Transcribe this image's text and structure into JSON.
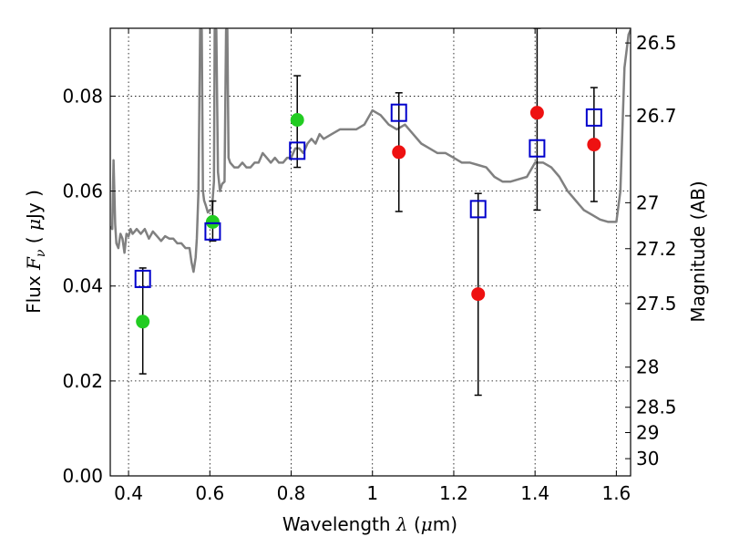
{
  "chart_data": {
    "type": "scatter",
    "xlabel_prefix": "Wavelength ",
    "xlabel_symbol": "λ",
    "xlabel_suffix": " (",
    "xlabel_unit_mu": "μ",
    "xlabel_unit_tail": "m)",
    "ylabel_prefix": "Flux ",
    "ylabel_symbol": "F",
    "ylabel_subscript": "ν",
    "ylabel_suffix_open": " ( ",
    "ylabel_unit_mu": "μ",
    "ylabel_unit_tail": "Jy )",
    "y2label": "Magnitude (AB)",
    "xlim": [
      0.355,
      1.635
    ],
    "ylim": [
      0.0,
      0.0943
    ],
    "grid": true,
    "x_ticks": [
      {
        "v": 0.4,
        "label": "0.4"
      },
      {
        "v": 0.6,
        "label": "0.6"
      },
      {
        "v": 0.8,
        "label": "0.8"
      },
      {
        "v": 1.0,
        "label": "1"
      },
      {
        "v": 1.2,
        "label": "1.2"
      },
      {
        "v": 1.4,
        "label": "1.4"
      },
      {
        "v": 1.6,
        "label": "1.6"
      }
    ],
    "y_ticks": [
      {
        "v": 0.0,
        "label": "0.00"
      },
      {
        "v": 0.02,
        "label": "0.02"
      },
      {
        "v": 0.04,
        "label": "0.04"
      },
      {
        "v": 0.06,
        "label": "0.06"
      },
      {
        "v": 0.08,
        "label": "0.08"
      }
    ],
    "mag_ticks": [
      {
        "mag": 26.5,
        "label": "26.5"
      },
      {
        "mag": 26.7,
        "label": "26.7"
      },
      {
        "mag": 27.0,
        "label": "27"
      },
      {
        "mag": 27.2,
        "label": "27.2"
      },
      {
        "mag": 27.5,
        "label": "27.5"
      },
      {
        "mag": 28.0,
        "label": "28"
      },
      {
        "mag": 28.5,
        "label": "28.5"
      },
      {
        "mag": 29.0,
        "label": "29"
      },
      {
        "mag": 30.0,
        "label": "30"
      }
    ],
    "series": [
      {
        "marker": "line",
        "color": "#808080",
        "x": [
          0.355,
          0.36,
          0.363,
          0.367,
          0.37,
          0.375,
          0.38,
          0.385,
          0.39,
          0.395,
          0.4,
          0.405,
          0.41,
          0.415,
          0.42,
          0.43,
          0.44,
          0.45,
          0.46,
          0.47,
          0.48,
          0.49,
          0.5,
          0.51,
          0.52,
          0.53,
          0.54,
          0.55,
          0.555,
          0.56,
          0.565,
          0.568,
          0.572,
          0.576,
          0.58,
          0.583,
          0.586,
          0.59,
          0.595,
          0.6,
          0.605,
          0.61,
          0.612,
          0.616,
          0.62,
          0.625,
          0.63,
          0.636,
          0.64,
          0.643,
          0.646,
          0.65,
          0.66,
          0.67,
          0.68,
          0.69,
          0.7,
          0.71,
          0.72,
          0.73,
          0.74,
          0.75,
          0.76,
          0.77,
          0.78,
          0.79,
          0.8,
          0.81,
          0.82,
          0.83,
          0.84,
          0.85,
          0.86,
          0.87,
          0.88,
          0.9,
          0.92,
          0.94,
          0.96,
          0.98,
          1.0,
          1.02,
          1.04,
          1.06,
          1.08,
          1.1,
          1.12,
          1.14,
          1.16,
          1.18,
          1.2,
          1.22,
          1.24,
          1.26,
          1.28,
          1.3,
          1.32,
          1.34,
          1.36,
          1.38,
          1.4,
          1.42,
          1.44,
          1.46,
          1.48,
          1.5,
          1.52,
          1.54,
          1.56,
          1.58,
          1.6,
          1.61,
          1.62,
          1.63,
          1.635
        ],
        "y": [
          0.0525,
          0.052,
          0.0665,
          0.053,
          0.049,
          0.048,
          0.051,
          0.05,
          0.047,
          0.051,
          0.0505,
          0.052,
          0.051,
          0.0515,
          0.052,
          0.051,
          0.052,
          0.05,
          0.0515,
          0.0505,
          0.0495,
          0.0505,
          0.05,
          0.05,
          0.049,
          0.049,
          0.048,
          0.048,
          0.045,
          0.043,
          0.046,
          0.05,
          0.06,
          0.094,
          0.094,
          0.06,
          0.058,
          0.057,
          0.0555,
          0.056,
          0.056,
          0.062,
          0.094,
          0.094,
          0.064,
          0.06,
          0.0615,
          0.062,
          0.094,
          0.094,
          0.067,
          0.066,
          0.065,
          0.065,
          0.066,
          0.065,
          0.065,
          0.066,
          0.066,
          0.068,
          0.067,
          0.066,
          0.067,
          0.066,
          0.066,
          0.067,
          0.067,
          0.069,
          0.069,
          0.068,
          0.07,
          0.071,
          0.07,
          0.072,
          0.071,
          0.072,
          0.073,
          0.073,
          0.073,
          0.074,
          0.077,
          0.076,
          0.074,
          0.073,
          0.074,
          0.072,
          0.07,
          0.069,
          0.068,
          0.068,
          0.067,
          0.066,
          0.066,
          0.0655,
          0.065,
          0.063,
          0.062,
          0.062,
          0.0625,
          0.063,
          0.066,
          0.066,
          0.065,
          0.063,
          0.06,
          0.058,
          0.056,
          0.055,
          0.054,
          0.0535,
          0.0535,
          0.06,
          0.086,
          0.093,
          0.094
        ]
      },
      {
        "marker": "open-square",
        "color": "#0000cc",
        "x": [
          0.435,
          0.607,
          0.815,
          1.065,
          1.26,
          1.405,
          1.545
        ],
        "y": [
          0.0415,
          0.0515,
          0.0685,
          0.0765,
          0.0562,
          0.069,
          0.0755
        ],
        "err_low": [
          0.0215,
          0.0495,
          0.065,
          0.0557,
          0.017,
          0.056,
          0.0578
        ],
        "err_high": [
          0.0438,
          0.0579,
          0.0843,
          0.0807,
          0.0595,
          0.0943,
          0.0818
        ]
      },
      {
        "marker": "filled-circle",
        "color": "#22cc22",
        "x": [
          0.435,
          0.607,
          0.815
        ],
        "y": [
          0.0325,
          0.0535,
          0.075
        ]
      },
      {
        "marker": "filled-circle",
        "color": "#ee1111",
        "x": [
          1.065,
          1.26,
          1.405,
          1.545
        ],
        "y": [
          0.0682,
          0.0383,
          0.0765,
          0.0698
        ]
      }
    ]
  }
}
